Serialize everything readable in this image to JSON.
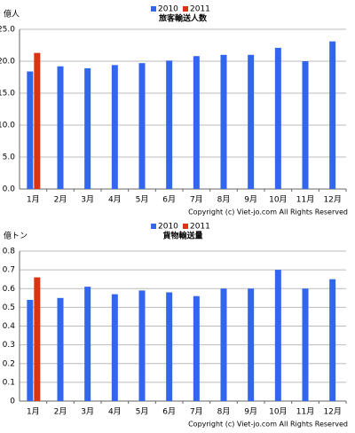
{
  "chart_data": [
    {
      "type": "bar",
      "title": "旅客輸送人数",
      "y_label": "億人",
      "categories": [
        "1月",
        "2月",
        "3月",
        "4月",
        "5月",
        "6月",
        "7月",
        "8月",
        "9月",
        "10月",
        "11月",
        "12月"
      ],
      "series": [
        {
          "name": "2010",
          "color": "#3366ee",
          "values": [
            18.4,
            19.2,
            18.9,
            19.4,
            19.7,
            20.1,
            20.8,
            21.0,
            21.0,
            22.1,
            20.0,
            23.1
          ]
        },
        {
          "name": "2011",
          "color": "#dd3311",
          "values": [
            21.3,
            null,
            null,
            null,
            null,
            null,
            null,
            null,
            null,
            null,
            null,
            null
          ]
        }
      ],
      "ylim": [
        0,
        25
      ],
      "yticks": [
        {
          "value": 0,
          "label": "0.0"
        },
        {
          "value": 5,
          "label": "5.0"
        },
        {
          "value": 10,
          "label": "10.0"
        },
        {
          "value": 15,
          "label": "15.0"
        },
        {
          "value": 20,
          "label": "20.0"
        },
        {
          "value": 25,
          "label": "25.0"
        }
      ],
      "grid": true,
      "legend": "top",
      "note": "Copyright (c) Viet-jo.com All Rights Reserved"
    },
    {
      "type": "bar",
      "title": "貨物輸送量",
      "y_label": "億トン",
      "categories": [
        "1月",
        "2月",
        "3月",
        "4月",
        "5月",
        "6月",
        "7月",
        "8月",
        "9月",
        "10月",
        "11月",
        "12月"
      ],
      "series": [
        {
          "name": "2010",
          "color": "#3366ee",
          "values": [
            0.54,
            0.55,
            0.61,
            0.57,
            0.59,
            0.58,
            0.56,
            0.6,
            0.6,
            0.7,
            0.6,
            0.65
          ]
        },
        {
          "name": "2011",
          "color": "#dd3311",
          "values": [
            0.66,
            null,
            null,
            null,
            null,
            null,
            null,
            null,
            null,
            null,
            null,
            null
          ]
        }
      ],
      "ylim": [
        0,
        0.8
      ],
      "yticks": [
        0,
        0.1,
        0.2,
        0.3,
        0.4,
        0.5,
        0.6,
        0.7,
        0.8
      ],
      "grid": true,
      "legend": "top",
      "note": "Copyright (c) Viet-jo.com All Rights Reserved"
    }
  ]
}
